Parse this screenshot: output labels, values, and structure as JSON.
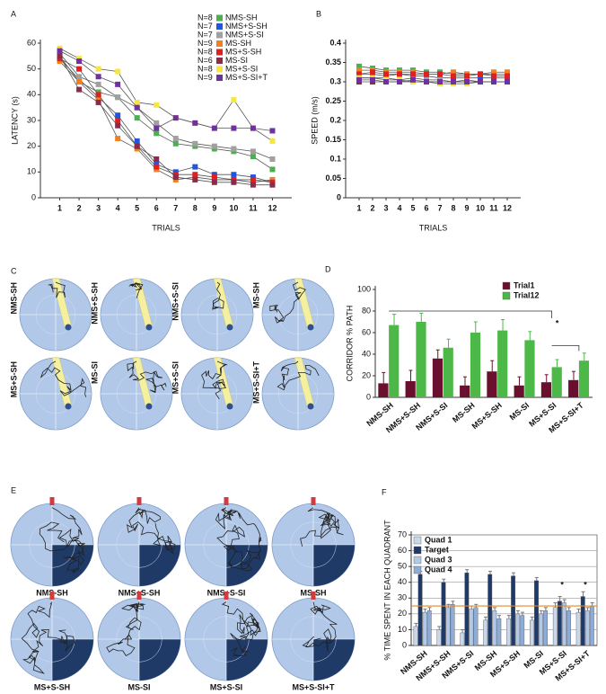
{
  "chart_data": [
    {
      "type": "line",
      "panel": "A",
      "ylabel": "LATENCY (s)",
      "xlabel": "TRIALS",
      "x": [
        1,
        2,
        3,
        4,
        5,
        6,
        7,
        8,
        9,
        10,
        11,
        12
      ],
      "xlim": [
        0,
        13
      ],
      "xticks": [
        1,
        2,
        3,
        4,
        5,
        6,
        7,
        8,
        9,
        10,
        11,
        12
      ],
      "ylim": [
        0,
        60
      ],
      "yticks": [
        0,
        10,
        20,
        30,
        40,
        50,
        60
      ],
      "legend": "upper right",
      "series": [
        {
          "n": "N=8",
          "name": "NMS-SH",
          "color": "#4caf50",
          "values": [
            55,
            45,
            41,
            39,
            31,
            25,
            21,
            20,
            19,
            18,
            16,
            11
          ]
        },
        {
          "n": "N=7",
          "name": "NMS+S-SH",
          "color": "#2255dd",
          "values": [
            54,
            46,
            39,
            32,
            22,
            13,
            10,
            12,
            9,
            9,
            8,
            6
          ]
        },
        {
          "n": "N=7",
          "name": "NMS+S-SI",
          "color": "#a0a0a0",
          "values": [
            56,
            47,
            44,
            39,
            35,
            29,
            23,
            21,
            20,
            19,
            18,
            15
          ]
        },
        {
          "n": "N=9",
          "name": "MS-SH",
          "color": "#f08020",
          "values": [
            53,
            45,
            38,
            23,
            19,
            11,
            7,
            8,
            7,
            7,
            6,
            7
          ]
        },
        {
          "n": "N=8",
          "name": "MS+S-SH",
          "color": "#e02020",
          "values": [
            54,
            50,
            40,
            30,
            20,
            12,
            9,
            9,
            8,
            7,
            7,
            6
          ]
        },
        {
          "n": "N=6",
          "name": "MS-SI",
          "color": "#8b2b4a",
          "values": [
            55,
            42,
            37,
            28,
            20,
            15,
            8,
            7,
            6,
            6,
            5,
            5
          ]
        },
        {
          "n": "N=8",
          "name": "MS+S-SI",
          "color": "#f5e642",
          "values": [
            58,
            54,
            50,
            49,
            37,
            36,
            31,
            29,
            27,
            38,
            27,
            22
          ]
        },
        {
          "n": "N=9",
          "name": "MS+S-SI+T",
          "color": "#7030a0",
          "values": [
            57,
            53,
            47,
            44,
            35,
            27,
            31,
            29,
            27,
            27,
            27,
            26
          ]
        }
      ]
    },
    {
      "type": "line",
      "panel": "B",
      "ylabel": "SPEED (m/s)",
      "xlabel": "TRIALS",
      "x": [
        1,
        2,
        3,
        4,
        5,
        6,
        7,
        8,
        9,
        10,
        11,
        12
      ],
      "xlim": [
        0,
        13
      ],
      "xticks": [
        1,
        2,
        3,
        4,
        5,
        6,
        7,
        8,
        9,
        10,
        11,
        12
      ],
      "ylim": [
        0,
        0.4
      ],
      "yticks": [
        0,
        0.05,
        0.1,
        0.15,
        0.2,
        0.25,
        0.3,
        0.35,
        0.4
      ],
      "series": [
        {
          "color": "#4caf50",
          "values": [
            0.34,
            0.335,
            0.33,
            0.33,
            0.33,
            0.325,
            0.325,
            0.32,
            0.32,
            0.32,
            0.32,
            0.32
          ]
        },
        {
          "color": "#2255dd",
          "values": [
            0.32,
            0.32,
            0.315,
            0.32,
            0.315,
            0.315,
            0.31,
            0.31,
            0.31,
            0.31,
            0.31,
            0.31
          ]
        },
        {
          "color": "#a0a0a0",
          "values": [
            0.31,
            0.31,
            0.31,
            0.305,
            0.31,
            0.305,
            0.305,
            0.3,
            0.305,
            0.3,
            0.3,
            0.3
          ]
        },
        {
          "color": "#f08020",
          "values": [
            0.33,
            0.33,
            0.325,
            0.325,
            0.325,
            0.32,
            0.32,
            0.325,
            0.32,
            0.32,
            0.325,
            0.325
          ]
        },
        {
          "color": "#e02020",
          "values": [
            0.32,
            0.325,
            0.32,
            0.32,
            0.32,
            0.32,
            0.32,
            0.315,
            0.315,
            0.32,
            0.315,
            0.315
          ]
        },
        {
          "color": "#8b2b4a",
          "values": [
            0.3,
            0.3,
            0.3,
            0.3,
            0.3,
            0.3,
            0.3,
            0.3,
            0.3,
            0.3,
            0.3,
            0.3
          ]
        },
        {
          "color": "#f5e642",
          "values": [
            0.31,
            0.31,
            0.305,
            0.305,
            0.3,
            0.3,
            0.295,
            0.295,
            0.295,
            0.3,
            0.3,
            0.3
          ]
        },
        {
          "color": "#7030a0",
          "values": [
            0.305,
            0.305,
            0.3,
            0.3,
            0.305,
            0.3,
            0.3,
            0.3,
            0.3,
            0.3,
            0.3,
            0.3
          ]
        }
      ]
    },
    {
      "type": "bar",
      "panel": "D",
      "ylabel": "CORRIDOR % PATH",
      "categories": [
        "NMS-SH",
        "NMS+S-SH",
        "NMS+S-SI",
        "MS-SH",
        "MS+S-SH",
        "MS-SI",
        "MS+S-SI",
        "MS+S-SI+T"
      ],
      "ylim": [
        0,
        100
      ],
      "yticks": [
        0,
        20,
        40,
        60,
        80,
        100
      ],
      "legend": "upper right",
      "annotations": [
        "*"
      ],
      "series": [
        {
          "name": "Trial1",
          "color": "#6b0f2e",
          "values": [
            13,
            15,
            36,
            11,
            24,
            11,
            14,
            16
          ],
          "errors": [
            10,
            10,
            8,
            8,
            10,
            8,
            7,
            8
          ]
        },
        {
          "name": "Trial12",
          "color": "#4cb848",
          "values": [
            67,
            70,
            46,
            60,
            62,
            53,
            28,
            34
          ],
          "errors": [
            10,
            8,
            8,
            10,
            10,
            8,
            7,
            7
          ]
        }
      ]
    },
    {
      "type": "bar",
      "panel": "F",
      "ylabel": "% TIME SPENT IN EACH QUADRANT",
      "categories": [
        "NMS-SH",
        "NMS+S-SH",
        "NMS+S-SI",
        "MS-SH",
        "MS+S-SH",
        "MS-SI",
        "MS+S-SI",
        "MS+S-SI+T"
      ],
      "ylim": [
        0,
        70
      ],
      "yticks": [
        0,
        10,
        20,
        30,
        40,
        50,
        60,
        70
      ],
      "grid": true,
      "legend": "upper left",
      "reference_line": 25,
      "reference_color": "#e08a2a",
      "annotations": [
        "*",
        "*"
      ],
      "series": [
        {
          "name": "Quad 1",
          "color": "#c9d7ec",
          "values": [
            12,
            10,
            8,
            16,
            17,
            16,
            24,
            21
          ],
          "errors": [
            2,
            2,
            2,
            2,
            2,
            2,
            3,
            2
          ]
        },
        {
          "name": "Target",
          "color": "#1f3a66",
          "values": [
            45,
            40,
            46,
            45,
            44,
            41,
            28,
            31
          ],
          "errors": [
            2,
            2,
            2,
            2,
            2,
            2,
            3,
            3
          ]
        },
        {
          "name": "Quad 3",
          "color": "#b3c8e6",
          "values": [
            21,
            24,
            23,
            22,
            20,
            20,
            27,
            22
          ],
          "errors": [
            2,
            2,
            2,
            2,
            2,
            2,
            2,
            2
          ]
        },
        {
          "name": "Quad 4",
          "color": "#8eacd8",
          "values": [
            22,
            26,
            24,
            17,
            19,
            22,
            22,
            25
          ],
          "errors": [
            2,
            2,
            2,
            2,
            2,
            2,
            2,
            2
          ]
        }
      ]
    }
  ],
  "path_panels": [
    {
      "panel": "C",
      "labels": [
        "NMS-SH",
        "NMS+S-SH",
        "NMS+S-SI",
        "MS-SH",
        "MS+S-SH",
        "MS-SI",
        "MS+S-SI",
        "MS+S-SI+T"
      ]
    },
    {
      "panel": "E",
      "labels": [
        "NMS-SH",
        "NMS+S-SH",
        "NMS+S-SI",
        "MS-SH",
        "MS+S-SH",
        "MS-SI",
        "MS+S-SI",
        "MS+S-SI+T"
      ]
    }
  ]
}
